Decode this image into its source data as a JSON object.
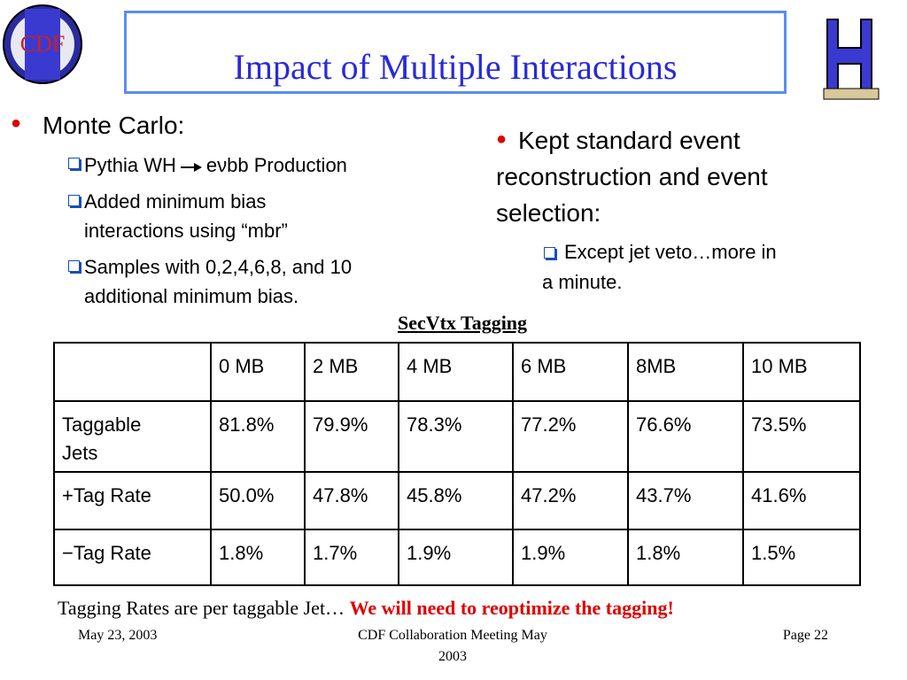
{
  "logo": "CDF",
  "title": "Impact of Multiple Interactions",
  "left": {
    "bullet": "Monte Carlo:",
    "subs": [
      {
        "pre": "Pythia WH",
        "post": "eνbb Production"
      },
      {
        "lines": [
          "Added minimum bias",
          "interactions using “mbr”"
        ]
      },
      {
        "lines": [
          "Samples with 0,2,4,6,8, and 10",
          "additional minimum bias."
        ]
      }
    ]
  },
  "right": {
    "lines": [
      "Kept standard event",
      "reconstruction and event",
      "selection:"
    ],
    "sub": [
      "Except jet veto…more in",
      "a minute."
    ]
  },
  "table": {
    "caption": "SecVtx Tagging",
    "header": [
      "0 MB",
      "2 MB",
      "4 MB",
      "6 MB",
      "8MB",
      "10 MB"
    ],
    "rows": [
      {
        "label": "Taggable Jets",
        "cells": [
          "81.8%",
          "79.9%",
          "78.3%",
          "77.2%",
          "76.6%",
          "73.5%"
        ]
      },
      {
        "label": "+Tag Rate",
        "cells": [
          "50.0%",
          "47.8%",
          "45.8%",
          "47.2%",
          "43.7%",
          "41.6%"
        ]
      },
      {
        "label": "−Tag Rate",
        "cells": [
          "1.8%",
          "1.7%",
          "1.9%",
          "1.9%",
          "1.8%",
          "1.5%"
        ]
      }
    ]
  },
  "note": {
    "plain": "Tagging Rates are per taggable Jet…",
    "emphasis": "We will need to reoptimize the tagging!"
  },
  "footer": {
    "date": "May 23, 2003",
    "center": [
      "CDF Collaboration Meeting May",
      "2003"
    ],
    "page": "Page 22"
  }
}
